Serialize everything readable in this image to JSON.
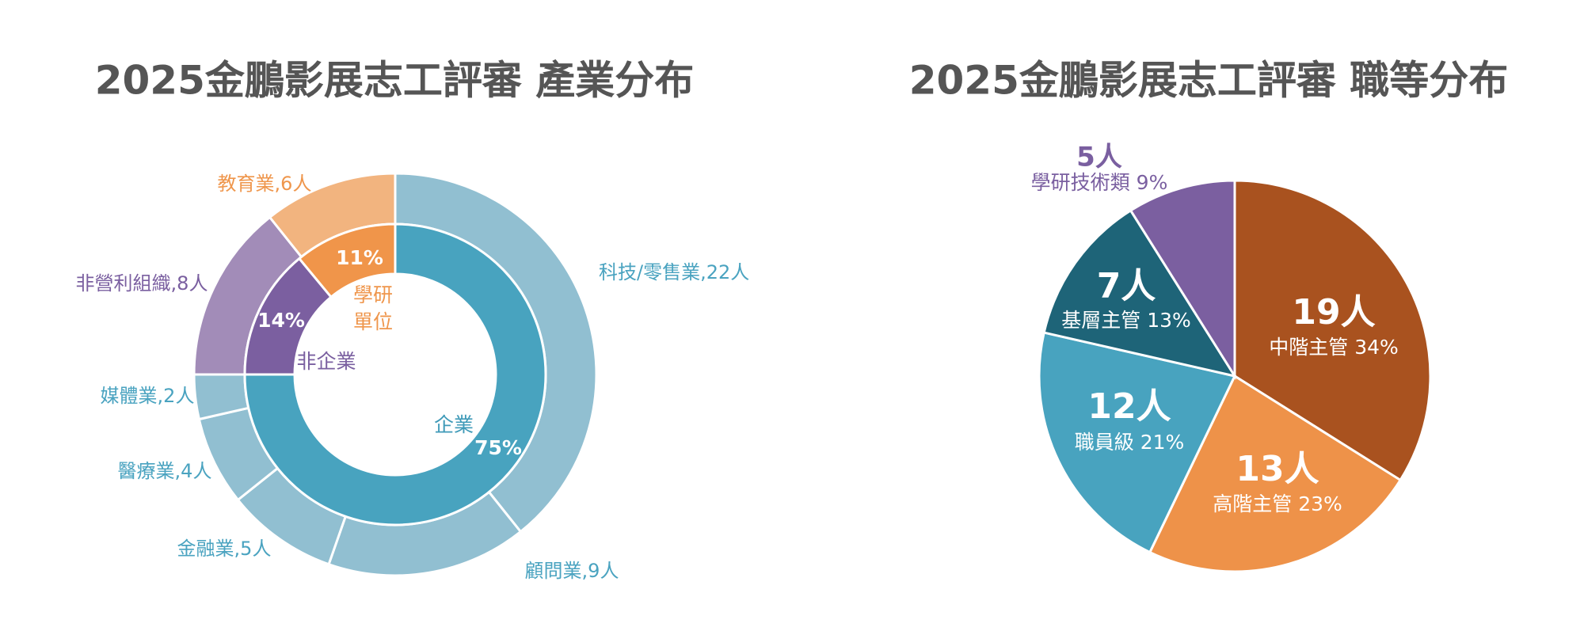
{
  "chart_data": [
    {
      "type": "donut",
      "title": "2025金鵬影展志工評審 產業分布",
      "outer": {
        "labels": [
          "科技/零售業,22人",
          "顧問業,9人",
          "金融業,5人",
          "醫療業,4人",
          "媒體業,2人",
          "非營利組織,8人",
          "教育業,6人"
        ],
        "values": [
          22,
          9,
          5,
          4,
          2,
          8,
          6
        ],
        "colors": [
          "#91bfd1",
          "#91bfd1",
          "#91bfd1",
          "#91bfd1",
          "#91bfd1",
          "#a28cb8",
          "#f2b47f"
        ],
        "label_colors": [
          "#4aa3c0",
          "#4aa3c0",
          "#4aa3c0",
          "#4aa3c0",
          "#4aa3c0",
          "#7a5fa0",
          "#ef964c"
        ]
      },
      "inner": {
        "labels": [
          "企業",
          "非企業",
          "學研\n單位"
        ],
        "values": [
          75,
          14,
          11
        ],
        "value_labels": [
          "75%",
          "14%",
          "11%"
        ],
        "colors": [
          "#48a3bf",
          "#7b5fa0",
          "#f0954a"
        ],
        "label_colors": [
          "#3f9ab8",
          "#7a5fa0",
          "#ef964c"
        ]
      }
    },
    {
      "type": "pie",
      "title": "2025金鵬影展志工評審 職等分布",
      "categories": [
        "中階主管",
        "高階主管",
        "職員級",
        "基層主管",
        "學研技術類"
      ],
      "values": [
        19,
        13,
        12,
        7,
        5
      ],
      "value_labels": [
        "19人",
        "13人",
        "12人",
        "7人",
        "5人"
      ],
      "percents": [
        34,
        23,
        21,
        13,
        9
      ],
      "percent_labels": [
        "34%",
        "23%",
        "21%",
        "13%",
        "9%"
      ],
      "colors": [
        "#a9521f",
        "#ee9249",
        "#48a3bf",
        "#1e6478",
        "#7b5fa0"
      ],
      "label_colors": [
        "#ffffff",
        "#ffffff",
        "#ffffff",
        "#ffffff",
        "#7a5fa0"
      ]
    }
  ]
}
